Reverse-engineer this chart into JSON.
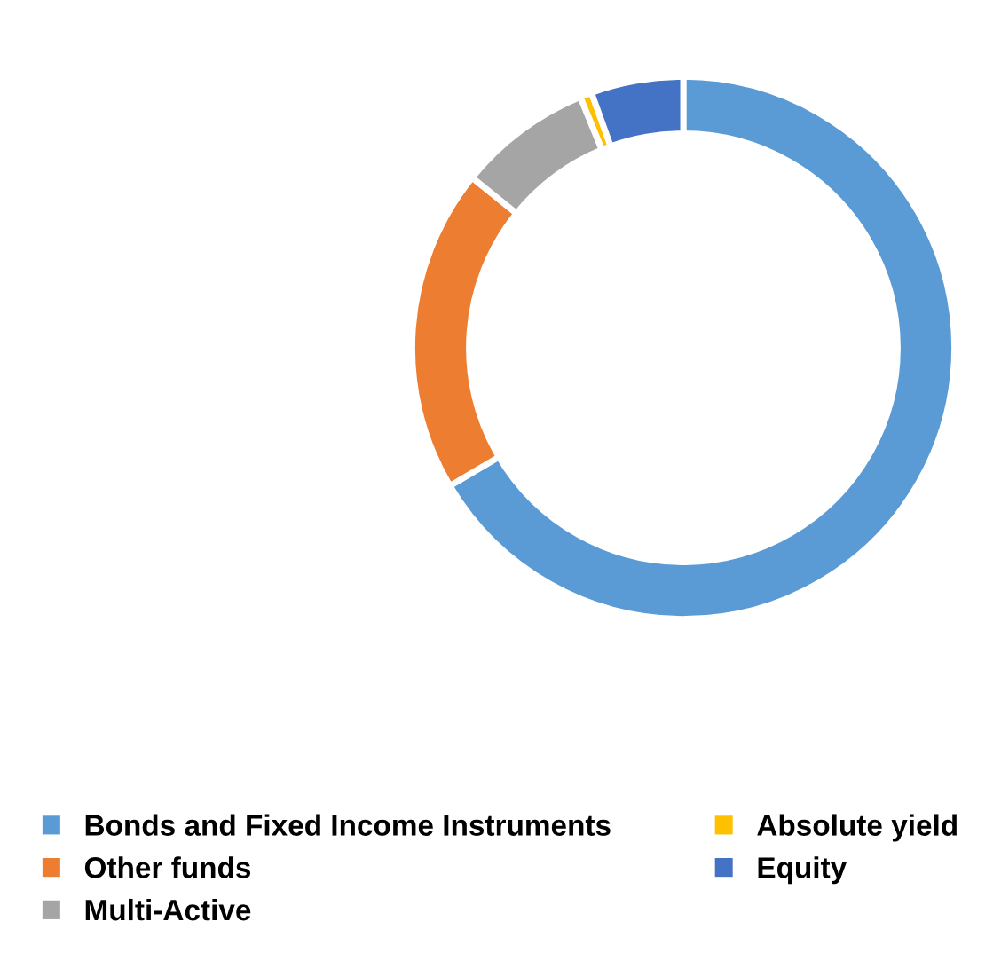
{
  "chart_data": {
    "type": "donut",
    "categories": [
      "Bonds and Fixed Income Instruments",
      "Other funds",
      "Multi-Active",
      "Absolute yield",
      "Equity"
    ],
    "values": [
      66.5,
      19.3,
      8.0,
      0.7,
      5.5
    ],
    "colors": [
      "#5b9bd5",
      "#ed7d31",
      "#a5a5a5",
      "#ffc000",
      "#4472c4"
    ],
    "legend": "bottom"
  }
}
